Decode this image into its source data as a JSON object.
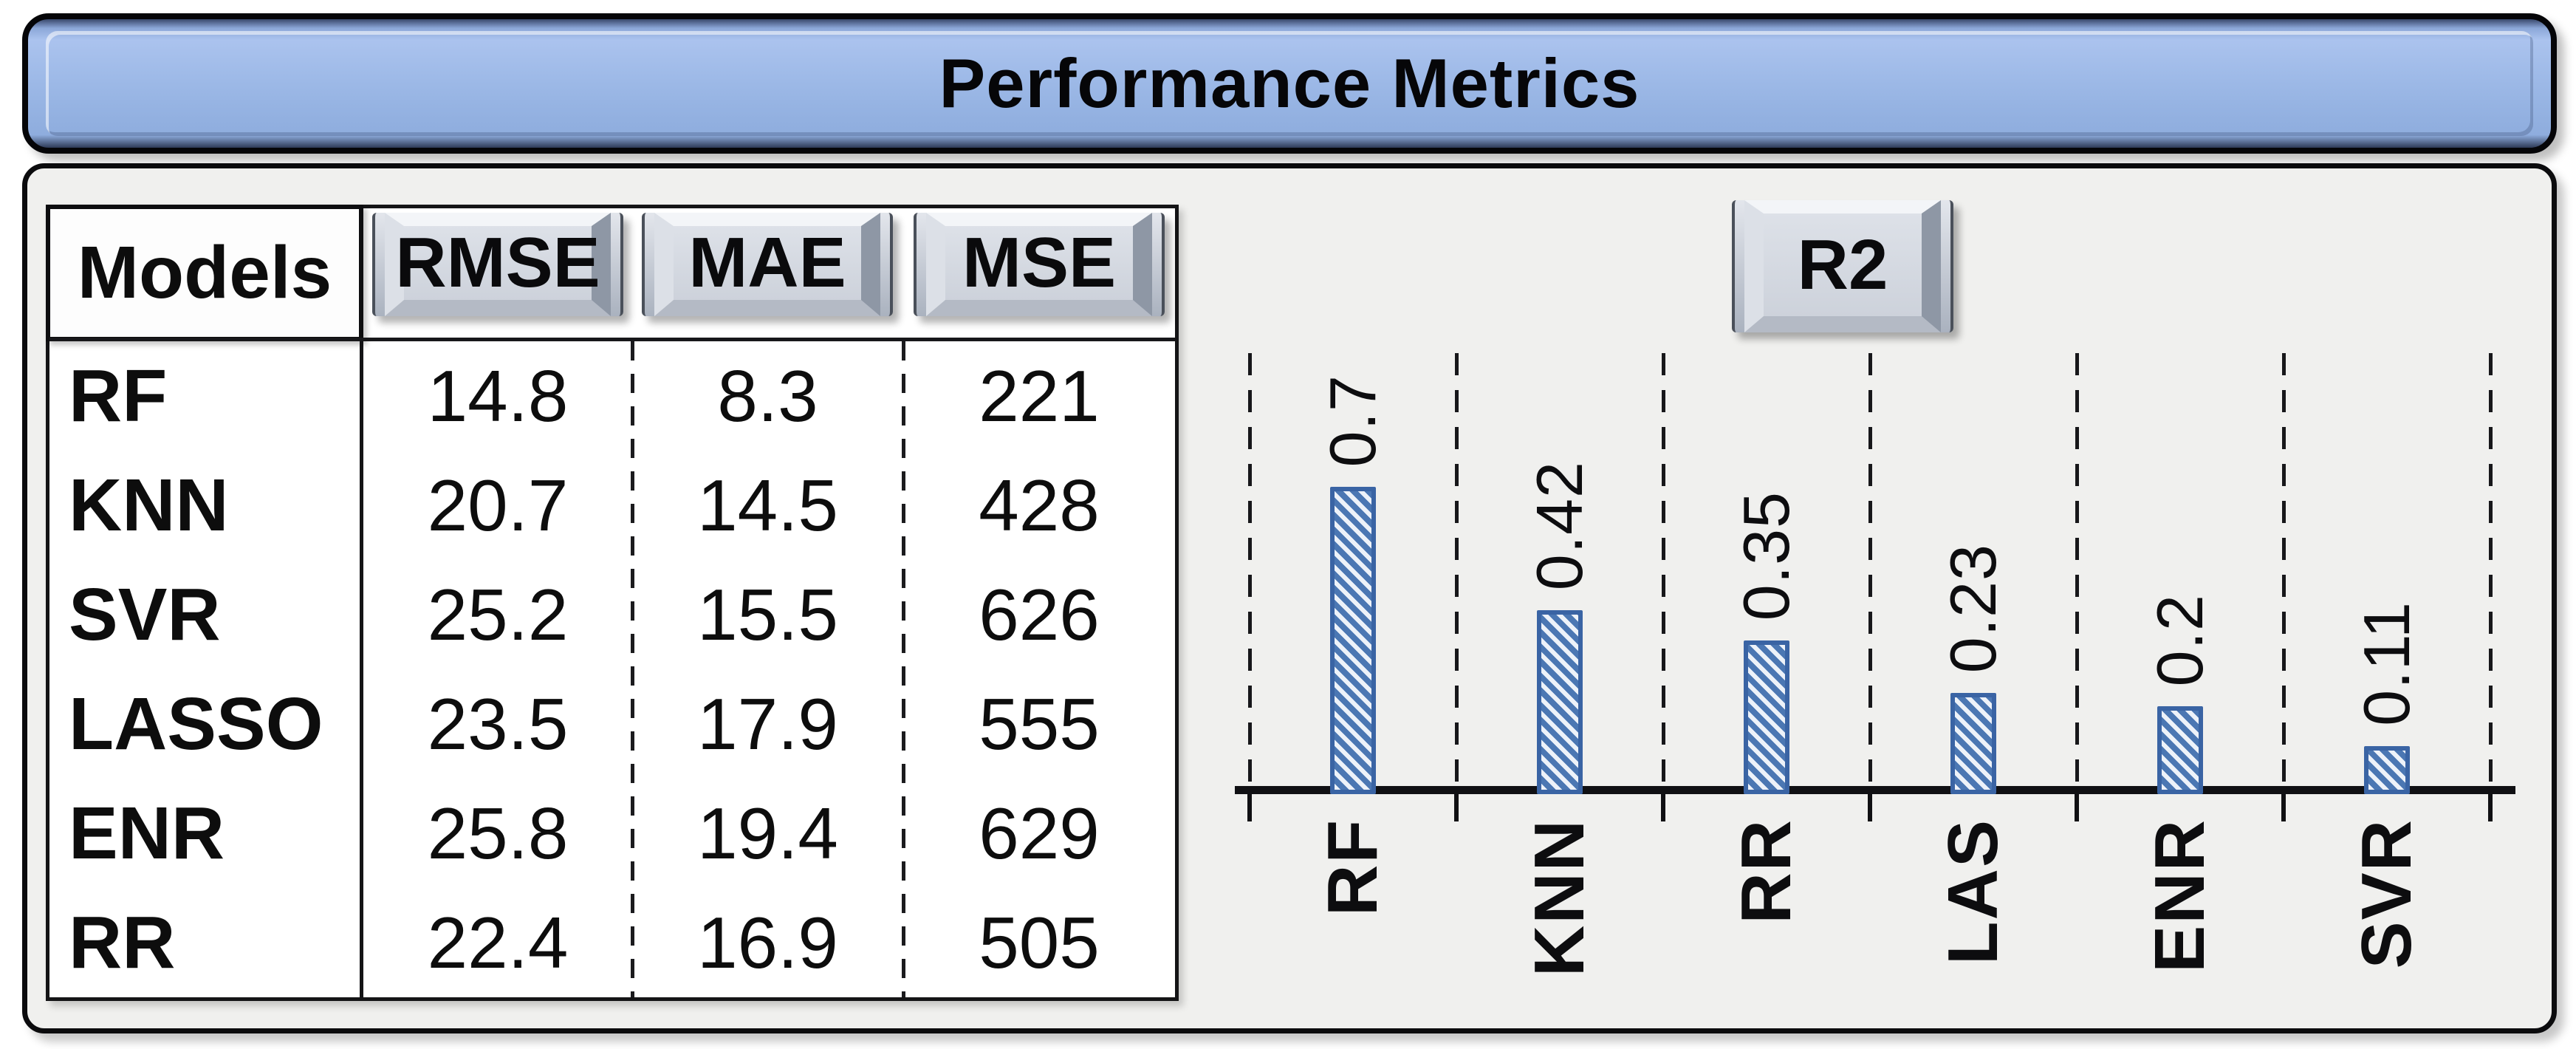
{
  "title": "Performance Metrics",
  "table": {
    "models_header": "Models",
    "metric_headers": [
      "RMSE",
      "MAE",
      "MSE"
    ],
    "rows": [
      {
        "model": "RF",
        "rmse": "14.8",
        "mae": "8.3",
        "mse": "221"
      },
      {
        "model": "KNN",
        "rmse": "20.7",
        "mae": "14.5",
        "mse": "428"
      },
      {
        "model": "SVR",
        "rmse": "25.2",
        "mae": "15.5",
        "mse": "626"
      },
      {
        "model": "LASSO",
        "rmse": "23.5",
        "mae": "17.9",
        "mse": "555"
      },
      {
        "model": "ENR",
        "rmse": "25.8",
        "mae": "19.4",
        "mse": "629"
      },
      {
        "model": "RR",
        "rmse": "22.4",
        "mae": "16.9",
        "mse": "505"
      }
    ]
  },
  "chart_data": {
    "type": "bar",
    "title": "R2",
    "categories": [
      "RF",
      "KNN",
      "RR",
      "LAS",
      "ENR",
      "SVR"
    ],
    "values": [
      0.7,
      0.42,
      0.35,
      0.23,
      0.2,
      0.11
    ],
    "value_labels": [
      "0.7",
      "0.42",
      "0.35",
      "0.23",
      "0.2",
      "0.11"
    ],
    "xlabel": "",
    "ylabel": "",
    "ylim": [
      0,
      0.75
    ],
    "grid": "vertical-dashed-separators",
    "legend_position": "none",
    "label_rotation_deg": 90
  },
  "colors": {
    "title_bar_blue": "#9db9e7",
    "panel_bg": "#f0f0ee",
    "key_face_gray": "#cfd4dc",
    "bar_fill_blue": "#4b77b3",
    "bar_border_blue": "#3a64a4",
    "text": "#0d0d0f"
  }
}
